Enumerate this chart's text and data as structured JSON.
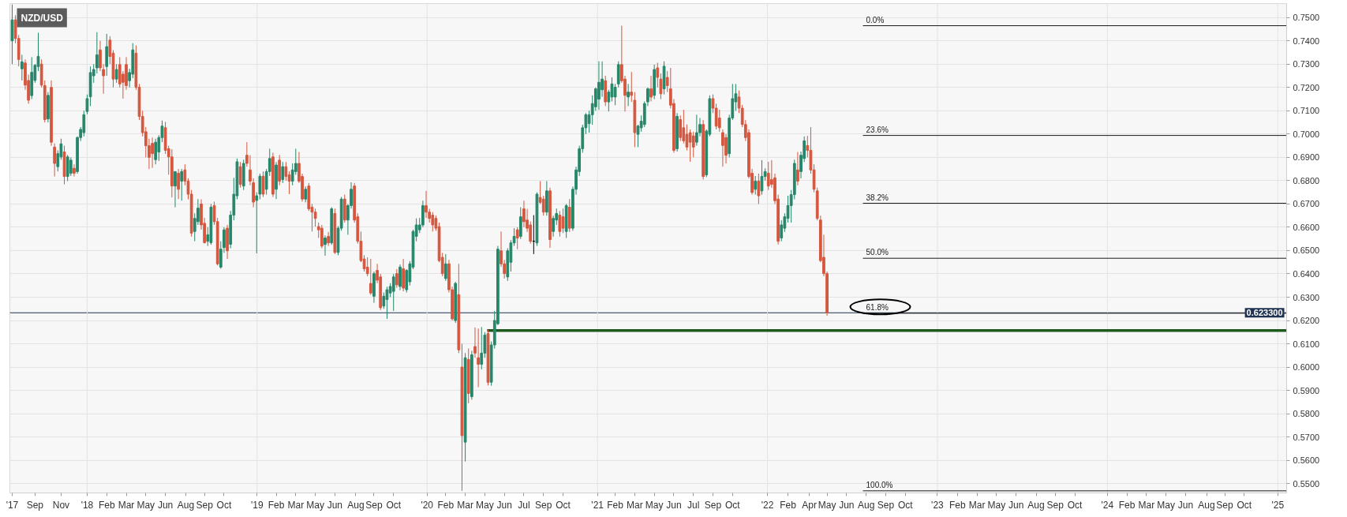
{
  "chart_data": {
    "type": "candlestick",
    "title": "NZD/USD",
    "x": [
      "2017-07-24",
      "2017-07-31",
      "2017-08-07",
      "2017-08-14",
      "2017-08-21",
      "2017-08-28",
      "2017-09-04",
      "2017-09-11",
      "2017-09-18",
      "2017-09-25",
      "2017-10-02",
      "2017-10-09",
      "2017-10-16",
      "2017-10-23",
      "2017-10-30",
      "2017-11-06",
      "2017-11-13",
      "2017-11-20",
      "2017-11-27",
      "2017-12-04",
      "2017-12-11",
      "2017-12-18",
      "2017-12-25",
      "2018-01-01",
      "2018-01-08",
      "2018-01-15",
      "2018-01-22",
      "2018-01-29",
      "2018-02-05",
      "2018-02-12",
      "2018-02-19",
      "2018-02-26",
      "2018-03-05",
      "2018-03-12",
      "2018-03-19",
      "2018-03-26",
      "2018-04-02",
      "2018-04-09",
      "2018-04-16",
      "2018-04-23",
      "2018-04-30",
      "2018-05-07",
      "2018-05-14",
      "2018-05-21",
      "2018-05-28",
      "2018-06-04",
      "2018-06-11",
      "2018-06-18",
      "2018-06-25",
      "2018-07-02",
      "2018-07-09",
      "2018-07-16",
      "2018-07-23",
      "2018-07-30",
      "2018-08-06",
      "2018-08-13",
      "2018-08-20",
      "2018-08-27",
      "2018-09-03",
      "2018-09-10",
      "2018-09-17",
      "2018-09-24",
      "2018-10-01",
      "2018-10-08",
      "2018-10-15",
      "2018-10-22",
      "2018-10-29",
      "2018-11-05",
      "2018-11-12",
      "2018-11-19",
      "2018-11-26",
      "2018-12-03",
      "2018-12-10",
      "2018-12-17",
      "2018-12-24",
      "2018-12-31",
      "2019-01-07",
      "2019-01-14",
      "2019-01-21",
      "2019-01-28",
      "2019-02-04",
      "2019-02-11",
      "2019-02-18",
      "2019-02-25",
      "2019-03-04",
      "2019-03-11",
      "2019-03-18",
      "2019-03-25",
      "2019-04-01",
      "2019-04-08",
      "2019-04-15",
      "2019-04-22",
      "2019-04-29",
      "2019-05-06",
      "2019-05-13",
      "2019-05-20",
      "2019-05-27",
      "2019-06-03",
      "2019-06-10",
      "2019-06-17",
      "2019-06-24",
      "2019-07-01",
      "2019-07-08",
      "2019-07-15",
      "2019-07-22",
      "2019-07-29",
      "2019-08-05",
      "2019-08-12",
      "2019-08-19",
      "2019-08-26",
      "2019-09-02",
      "2019-09-09",
      "2019-09-16",
      "2019-09-23",
      "2019-09-30",
      "2019-10-07",
      "2019-10-14",
      "2019-10-21",
      "2019-10-28",
      "2019-11-04",
      "2019-11-11",
      "2019-11-18",
      "2019-11-25",
      "2019-12-02",
      "2019-12-09",
      "2019-12-16",
      "2019-12-23",
      "2019-12-30",
      "2020-01-06",
      "2020-01-13",
      "2020-01-20",
      "2020-01-27",
      "2020-02-03",
      "2020-02-10",
      "2020-02-17",
      "2020-02-24",
      "2020-03-02",
      "2020-03-09",
      "2020-03-16",
      "2020-03-23",
      "2020-03-30",
      "2020-04-06",
      "2020-04-13",
      "2020-04-20",
      "2020-04-27",
      "2020-05-04",
      "2020-05-11",
      "2020-05-18",
      "2020-05-25",
      "2020-06-01",
      "2020-06-08",
      "2020-06-15",
      "2020-06-22",
      "2020-06-29",
      "2020-07-06",
      "2020-07-13",
      "2020-07-20",
      "2020-07-27",
      "2020-08-03",
      "2020-08-10",
      "2020-08-17",
      "2020-08-24",
      "2020-08-31",
      "2020-09-07",
      "2020-09-14",
      "2020-09-21",
      "2020-09-28",
      "2020-10-05",
      "2020-10-12",
      "2020-10-19",
      "2020-10-26",
      "2020-11-02",
      "2020-11-09",
      "2020-11-16",
      "2020-11-23",
      "2020-11-30",
      "2020-12-07",
      "2020-12-14",
      "2020-12-21",
      "2020-12-28",
      "2021-01-04",
      "2021-01-11",
      "2021-01-18",
      "2021-01-25",
      "2021-02-01",
      "2021-02-08",
      "2021-02-15",
      "2021-02-22",
      "2021-03-01",
      "2021-03-08",
      "2021-03-15",
      "2021-03-22",
      "2021-03-29",
      "2021-04-05",
      "2021-04-12",
      "2021-04-19",
      "2021-04-26",
      "2021-05-03",
      "2021-05-10",
      "2021-05-17",
      "2021-05-24",
      "2021-05-31",
      "2021-06-07",
      "2021-06-14",
      "2021-06-21",
      "2021-06-28",
      "2021-07-05",
      "2021-07-12",
      "2021-07-19",
      "2021-07-26",
      "2021-08-02",
      "2021-08-09",
      "2021-08-16",
      "2021-08-23",
      "2021-08-30",
      "2021-09-06",
      "2021-09-13",
      "2021-09-20",
      "2021-09-27",
      "2021-10-04",
      "2021-10-11",
      "2021-10-18",
      "2021-10-25",
      "2021-11-01",
      "2021-11-08",
      "2021-11-15",
      "2021-11-22",
      "2021-11-29",
      "2021-12-06",
      "2021-12-13",
      "2021-12-20",
      "2021-12-27",
      "2022-01-03",
      "2022-01-10",
      "2022-01-17",
      "2022-01-24",
      "2022-01-31",
      "2022-02-07",
      "2022-02-14",
      "2022-02-21",
      "2022-02-28",
      "2022-03-07",
      "2022-03-14",
      "2022-03-21",
      "2022-03-28",
      "2022-04-04",
      "2022-04-11",
      "2022-04-18",
      "2022-04-25",
      "2022-05-02",
      "2022-05-09"
    ],
    "ohlc": [
      [
        0.74,
        0.7556,
        0.73,
        0.749
      ],
      [
        0.749,
        0.751,
        0.739,
        0.741
      ],
      [
        0.741,
        0.7425,
        0.729,
        0.732
      ],
      [
        0.728,
        0.734,
        0.723,
        0.731
      ],
      [
        0.7305,
        0.732,
        0.719,
        0.721
      ],
      [
        0.723,
        0.7255,
        0.713,
        0.7145
      ],
      [
        0.7165,
        0.733,
        0.715,
        0.7265
      ],
      [
        0.723,
        0.73,
        0.722,
        0.7295
      ],
      [
        0.729,
        0.7435,
        0.727,
        0.7333
      ],
      [
        0.73,
        0.732,
        0.72,
        0.721
      ],
      [
        0.7208,
        0.723,
        0.705,
        0.7062
      ],
      [
        0.7065,
        0.718,
        0.705,
        0.7166
      ],
      [
        0.72,
        0.723,
        0.695,
        0.6965
      ],
      [
        0.6944,
        0.696,
        0.6818,
        0.6874
      ],
      [
        0.686,
        0.693,
        0.684,
        0.6916
      ],
      [
        0.6902,
        0.698,
        0.689,
        0.6958
      ],
      [
        0.6923,
        0.695,
        0.6784,
        0.6818
      ],
      [
        0.6818,
        0.691,
        0.6798,
        0.6902
      ],
      [
        0.6832,
        0.69,
        0.682,
        0.6888
      ],
      [
        0.6853,
        0.687,
        0.6818,
        0.6832
      ],
      [
        0.6839,
        0.699,
        0.683,
        0.6985
      ],
      [
        0.6985,
        0.703,
        0.697,
        0.702
      ],
      [
        0.7006,
        0.71,
        0.699,
        0.7083
      ],
      [
        0.7097,
        0.717,
        0.7085,
        0.7152
      ],
      [
        0.716,
        0.729,
        0.712,
        0.7264
      ],
      [
        0.725,
        0.73,
        0.722,
        0.7277
      ],
      [
        0.7284,
        0.7437,
        0.726,
        0.734
      ],
      [
        0.7361,
        0.74,
        0.727,
        0.7284
      ],
      [
        0.7277,
        0.73,
        0.7173,
        0.725
      ],
      [
        0.729,
        0.743,
        0.725,
        0.7375
      ],
      [
        0.7403,
        0.742,
        0.73,
        0.7333
      ],
      [
        0.7347,
        0.736,
        0.72,
        0.7236
      ],
      [
        0.7236,
        0.73,
        0.722,
        0.7277
      ],
      [
        0.7298,
        0.733,
        0.72,
        0.7215
      ],
      [
        0.7257,
        0.727,
        0.7152,
        0.7222
      ],
      [
        0.7298,
        0.733,
        0.719,
        0.7208
      ],
      [
        0.7229,
        0.728,
        0.72,
        0.7264
      ],
      [
        0.7257,
        0.739,
        0.724,
        0.7361
      ],
      [
        0.7347,
        0.738,
        0.719,
        0.7201
      ],
      [
        0.7201,
        0.7215,
        0.706,
        0.7076
      ],
      [
        0.7076,
        0.71,
        0.699,
        0.7006
      ],
      [
        0.701,
        0.703,
        0.69,
        0.695
      ],
      [
        0.695,
        0.698,
        0.685,
        0.69
      ],
      [
        0.696,
        0.6985,
        0.6855,
        0.6916
      ],
      [
        0.689,
        0.698,
        0.687,
        0.6965
      ],
      [
        0.6923,
        0.6995,
        0.6885,
        0.6985
      ],
      [
        0.6985,
        0.7058,
        0.6965,
        0.7034
      ],
      [
        0.7027,
        0.7052,
        0.6915,
        0.693
      ],
      [
        0.6937,
        0.695,
        0.6826,
        0.6902
      ],
      [
        0.6902,
        0.6935,
        0.6728,
        0.6777
      ],
      [
        0.6777,
        0.684,
        0.6686,
        0.6839
      ],
      [
        0.6832,
        0.685,
        0.6721,
        0.6763
      ],
      [
        0.6798,
        0.685,
        0.6714,
        0.6839
      ],
      [
        0.6846,
        0.687,
        0.678,
        0.6798
      ],
      [
        0.6798,
        0.681,
        0.672,
        0.6742
      ],
      [
        0.6742,
        0.676,
        0.656,
        0.6575
      ],
      [
        0.6582,
        0.666,
        0.654,
        0.6638
      ],
      [
        0.6624,
        0.6721,
        0.661,
        0.6682
      ],
      [
        0.67,
        0.672,
        0.659,
        0.661
      ],
      [
        0.6617,
        0.664,
        0.653,
        0.6534
      ],
      [
        0.654,
        0.66,
        0.652,
        0.6568
      ],
      [
        0.6534,
        0.67,
        0.6525,
        0.6686
      ],
      [
        0.6693,
        0.671,
        0.661,
        0.6624
      ],
      [
        0.6624,
        0.664,
        0.6436,
        0.6443
      ],
      [
        0.6429,
        0.654,
        0.6422,
        0.6506
      ],
      [
        0.6513,
        0.66,
        0.649,
        0.6589
      ],
      [
        0.6596,
        0.661,
        0.6464,
        0.6499
      ],
      [
        0.6527,
        0.667,
        0.651,
        0.6652
      ],
      [
        0.6652,
        0.6812,
        0.663,
        0.6742
      ],
      [
        0.6735,
        0.6895,
        0.672,
        0.6881
      ],
      [
        0.686,
        0.688,
        0.677,
        0.6784
      ],
      [
        0.6777,
        0.689,
        0.676,
        0.6874
      ],
      [
        0.6909,
        0.6965,
        0.686,
        0.6874
      ],
      [
        0.6846,
        0.6909,
        0.678,
        0.6798
      ],
      [
        0.6791,
        0.681,
        0.6686,
        0.6708
      ],
      [
        0.6715,
        0.675,
        0.6488,
        0.6735
      ],
      [
        0.6742,
        0.683,
        0.672,
        0.6819
      ],
      [
        0.6819,
        0.684,
        0.673,
        0.6742
      ],
      [
        0.6763,
        0.685,
        0.674,
        0.6839
      ],
      [
        0.6839,
        0.6937,
        0.682,
        0.6895
      ],
      [
        0.6902,
        0.692,
        0.673,
        0.6742
      ],
      [
        0.6763,
        0.688,
        0.6721,
        0.6867
      ],
      [
        0.6888,
        0.691,
        0.678,
        0.6798
      ],
      [
        0.6805,
        0.688,
        0.679,
        0.686
      ],
      [
        0.686,
        0.688,
        0.68,
        0.6818
      ],
      [
        0.6825,
        0.684,
        0.6742,
        0.6798
      ],
      [
        0.6798,
        0.6874,
        0.678,
        0.6846
      ],
      [
        0.6839,
        0.6937,
        0.6825,
        0.6874
      ],
      [
        0.6874,
        0.6923,
        0.679,
        0.6798
      ],
      [
        0.6818,
        0.683,
        0.671,
        0.6721
      ],
      [
        0.6721,
        0.6775,
        0.6707,
        0.6763
      ],
      [
        0.6777,
        0.679,
        0.667,
        0.6679
      ],
      [
        0.6686,
        0.67,
        0.6582,
        0.6665
      ],
      [
        0.6665,
        0.668,
        0.6603,
        0.6638
      ],
      [
        0.6603,
        0.662,
        0.6554,
        0.6589
      ],
      [
        0.6596,
        0.661,
        0.651,
        0.6519
      ],
      [
        0.6526,
        0.6565,
        0.6478,
        0.6554
      ],
      [
        0.6561,
        0.658,
        0.652,
        0.6533
      ],
      [
        0.6533,
        0.6686,
        0.6525,
        0.6679
      ],
      [
        0.6659,
        0.668,
        0.6485,
        0.6492
      ],
      [
        0.6492,
        0.6605,
        0.648,
        0.6596
      ],
      [
        0.6596,
        0.673,
        0.6585,
        0.6721
      ],
      [
        0.6721,
        0.674,
        0.662,
        0.6631
      ],
      [
        0.6631,
        0.67,
        0.6568,
        0.6693
      ],
      [
        0.6693,
        0.6793,
        0.668,
        0.6763
      ],
      [
        0.6777,
        0.679,
        0.662,
        0.6631
      ],
      [
        0.6645,
        0.666,
        0.653,
        0.654
      ],
      [
        0.654,
        0.6582,
        0.645,
        0.6457
      ],
      [
        0.6464,
        0.648,
        0.641,
        0.6422
      ],
      [
        0.6429,
        0.6471,
        0.639,
        0.6401
      ],
      [
        0.6359,
        0.6464,
        0.631,
        0.6318
      ],
      [
        0.6304,
        0.641,
        0.6276,
        0.6401
      ],
      [
        0.6415,
        0.6443,
        0.636,
        0.6373
      ],
      [
        0.6387,
        0.64,
        0.6245,
        0.6255
      ],
      [
        0.6262,
        0.632,
        0.625,
        0.6304
      ],
      [
        0.629,
        0.6345,
        0.6207,
        0.6332
      ],
      [
        0.6318,
        0.636,
        0.63,
        0.6346
      ],
      [
        0.6325,
        0.64,
        0.6241,
        0.6387
      ],
      [
        0.6401,
        0.642,
        0.634,
        0.6353
      ],
      [
        0.6346,
        0.644,
        0.633,
        0.6429
      ],
      [
        0.6422,
        0.6464,
        0.6325,
        0.6339
      ],
      [
        0.6332,
        0.642,
        0.632,
        0.6415
      ],
      [
        0.6366,
        0.6455,
        0.635,
        0.6443
      ],
      [
        0.6429,
        0.659,
        0.642,
        0.6582
      ],
      [
        0.6561,
        0.6638,
        0.654,
        0.661
      ],
      [
        0.6589,
        0.664,
        0.6575,
        0.661
      ],
      [
        0.661,
        0.6714,
        0.66,
        0.6693
      ],
      [
        0.6693,
        0.6756,
        0.664,
        0.6665
      ],
      [
        0.6665,
        0.6679,
        0.662,
        0.6638
      ],
      [
        0.6652,
        0.6665,
        0.6582,
        0.661
      ],
      [
        0.6638,
        0.665,
        0.6585,
        0.6596
      ],
      [
        0.6603,
        0.662,
        0.645,
        0.6457
      ],
      [
        0.6471,
        0.649,
        0.639,
        0.6401
      ],
      [
        0.638,
        0.6485,
        0.637,
        0.6443
      ],
      [
        0.6443,
        0.646,
        0.632,
        0.6332
      ],
      [
        0.6332,
        0.6345,
        0.62,
        0.6207
      ],
      [
        0.62,
        0.6366,
        0.619,
        0.6359
      ],
      [
        0.6311,
        0.6443,
        0.606,
        0.6074
      ],
      [
        0.6,
        0.61,
        0.5469,
        0.5706
      ],
      [
        0.5678,
        0.606,
        0.5595,
        0.604
      ],
      [
        0.6033,
        0.608,
        0.5845,
        0.5887
      ],
      [
        0.5873,
        0.607,
        0.586,
        0.6053
      ],
      [
        0.6088,
        0.617,
        0.604,
        0.606
      ],
      [
        0.604,
        0.6165,
        0.5914,
        0.6012
      ],
      [
        0.6012,
        0.6172,
        0.599,
        0.606
      ],
      [
        0.606,
        0.615,
        0.604,
        0.6137
      ],
      [
        0.6144,
        0.616,
        0.5921,
        0.5935
      ],
      [
        0.5935,
        0.611,
        0.592,
        0.6095
      ],
      [
        0.6095,
        0.6241,
        0.608,
        0.62
      ],
      [
        0.6186,
        0.652,
        0.618,
        0.6506
      ],
      [
        0.6499,
        0.6582,
        0.643,
        0.6443
      ],
      [
        0.6443,
        0.646,
        0.638,
        0.6401
      ],
      [
        0.6387,
        0.651,
        0.637,
        0.6499
      ],
      [
        0.645,
        0.6545,
        0.641,
        0.6533
      ],
      [
        0.6533,
        0.6596,
        0.652,
        0.6561
      ],
      [
        0.6589,
        0.66,
        0.6506,
        0.6554
      ],
      [
        0.6561,
        0.6686,
        0.655,
        0.6645
      ],
      [
        0.6679,
        0.6714,
        0.66,
        0.6624
      ],
      [
        0.6631,
        0.6679,
        0.658,
        0.6596
      ],
      [
        0.661,
        0.6625,
        0.653,
        0.654
      ],
      [
        0.654,
        0.6652,
        0.6485,
        0.654
      ],
      [
        0.6533,
        0.675,
        0.652,
        0.6742
      ],
      [
        0.6728,
        0.6798,
        0.67,
        0.6707
      ],
      [
        0.6721,
        0.6735,
        0.665,
        0.6665
      ],
      [
        0.6665,
        0.6798,
        0.665,
        0.6756
      ],
      [
        0.6756,
        0.677,
        0.6512,
        0.6547
      ],
      [
        0.6582,
        0.665,
        0.656,
        0.6638
      ],
      [
        0.6631,
        0.668,
        0.661,
        0.6659
      ],
      [
        0.6652,
        0.667,
        0.656,
        0.6582
      ],
      [
        0.6645,
        0.668,
        0.6575,
        0.6596
      ],
      [
        0.6582,
        0.67,
        0.6554,
        0.6693
      ],
      [
        0.6686,
        0.6721,
        0.658,
        0.6596
      ],
      [
        0.6596,
        0.6775,
        0.6585,
        0.6763
      ],
      [
        0.6763,
        0.686,
        0.674,
        0.6846
      ],
      [
        0.6839,
        0.695,
        0.682,
        0.6937
      ],
      [
        0.6937,
        0.704,
        0.692,
        0.7027
      ],
      [
        0.7027,
        0.709,
        0.7,
        0.7083
      ],
      [
        0.7045,
        0.71,
        0.7006,
        0.7083
      ],
      [
        0.7083,
        0.7166,
        0.704,
        0.7131
      ],
      [
        0.7117,
        0.72,
        0.71,
        0.7194
      ],
      [
        0.715,
        0.7312,
        0.7104,
        0.7222
      ],
      [
        0.719,
        0.7312,
        0.716,
        0.7236
      ],
      [
        0.7229,
        0.725,
        0.712,
        0.7138
      ],
      [
        0.7138,
        0.719,
        0.7097,
        0.718
      ],
      [
        0.7159,
        0.7243,
        0.714,
        0.7215
      ],
      [
        0.7159,
        0.7215,
        0.7124,
        0.7201
      ],
      [
        0.7215,
        0.7312,
        0.72,
        0.7298
      ],
      [
        0.7298,
        0.7465,
        0.722,
        0.7229
      ],
      [
        0.7236,
        0.725,
        0.7097,
        0.7166
      ],
      [
        0.7159,
        0.7215,
        0.712,
        0.718
      ],
      [
        0.718,
        0.7266,
        0.7138,
        0.7166
      ],
      [
        0.7145,
        0.718,
        0.6944,
        0.7006
      ],
      [
        0.6999,
        0.704,
        0.6944,
        0.7034
      ],
      [
        0.7027,
        0.708,
        0.701,
        0.7055
      ],
      [
        0.7041,
        0.714,
        0.703,
        0.7131
      ],
      [
        0.7138,
        0.72,
        0.712,
        0.7194
      ],
      [
        0.7194,
        0.725,
        0.714,
        0.7159
      ],
      [
        0.7166,
        0.7298,
        0.715,
        0.7277
      ],
      [
        0.7284,
        0.7306,
        0.72,
        0.7243
      ],
      [
        0.7236,
        0.726,
        0.715,
        0.7173
      ],
      [
        0.7194,
        0.7312,
        0.717,
        0.7291
      ],
      [
        0.7243,
        0.727,
        0.718,
        0.7208
      ],
      [
        0.7194,
        0.7284,
        0.711,
        0.7124
      ],
      [
        0.7131,
        0.715,
        0.692,
        0.693
      ],
      [
        0.6937,
        0.709,
        0.6925,
        0.7076
      ],
      [
        0.7062,
        0.708,
        0.697,
        0.6985
      ],
      [
        0.7027,
        0.7104,
        0.696,
        0.6971
      ],
      [
        0.6999,
        0.7041,
        0.693,
        0.6944
      ],
      [
        0.7006,
        0.702,
        0.6881,
        0.6965
      ],
      [
        0.6992,
        0.701,
        0.69,
        0.6944
      ],
      [
        0.6965,
        0.7083,
        0.695,
        0.7006
      ],
      [
        0.7006,
        0.7069,
        0.699,
        0.7041
      ],
      [
        0.7041,
        0.706,
        0.6805,
        0.6818
      ],
      [
        0.6825,
        0.702,
        0.6815,
        0.7013
      ],
      [
        0.6999,
        0.7166,
        0.699,
        0.7152
      ],
      [
        0.7152,
        0.717,
        0.709,
        0.7111
      ],
      [
        0.7111,
        0.713,
        0.702,
        0.7034
      ],
      [
        0.7069,
        0.7104,
        0.701,
        0.7027
      ],
      [
        0.7006,
        0.702,
        0.686,
        0.6951
      ],
      [
        0.6985,
        0.7,
        0.6874,
        0.6909
      ],
      [
        0.6916,
        0.7083,
        0.69,
        0.7069
      ],
      [
        0.7069,
        0.7215,
        0.706,
        0.7152
      ],
      [
        0.7138,
        0.7215,
        0.71,
        0.7173
      ],
      [
        0.7159,
        0.7187,
        0.709,
        0.7111
      ],
      [
        0.7111,
        0.7125,
        0.703,
        0.7041
      ],
      [
        0.7041,
        0.706,
        0.697,
        0.6985
      ],
      [
        0.7006,
        0.702,
        0.681,
        0.6818
      ],
      [
        0.6832,
        0.685,
        0.674,
        0.6749
      ],
      [
        0.6763,
        0.682,
        0.674,
        0.6798
      ],
      [
        0.6798,
        0.683,
        0.67,
        0.6735
      ],
      [
        0.6756,
        0.6888,
        0.674,
        0.6818
      ],
      [
        0.6818,
        0.6853,
        0.68,
        0.6839
      ],
      [
        0.6832,
        0.6881,
        0.676,
        0.6777
      ],
      [
        0.6805,
        0.6888,
        0.677,
        0.6784
      ],
      [
        0.6812,
        0.683,
        0.67,
        0.6714
      ],
      [
        0.6721,
        0.674,
        0.6526,
        0.654
      ],
      [
        0.6554,
        0.663,
        0.654,
        0.661
      ],
      [
        0.6596,
        0.666,
        0.658,
        0.6645
      ],
      [
        0.6638,
        0.6735,
        0.662,
        0.6693
      ],
      [
        0.6693,
        0.676,
        0.662,
        0.674
      ],
      [
        0.674,
        0.689,
        0.672,
        0.6874
      ],
      [
        0.6846,
        0.6923,
        0.678,
        0.6798
      ],
      [
        0.6839,
        0.6925,
        0.681,
        0.6909
      ],
      [
        0.6895,
        0.699,
        0.688,
        0.6971
      ],
      [
        0.6951,
        0.6992,
        0.69,
        0.693
      ],
      [
        0.693,
        0.703,
        0.683,
        0.6846
      ],
      [
        0.6846,
        0.687,
        0.675,
        0.6763
      ],
      [
        0.6756,
        0.677,
        0.663,
        0.6638
      ],
      [
        0.6631,
        0.665,
        0.645,
        0.6457
      ],
      [
        0.6471,
        0.6568,
        0.639,
        0.6401
      ],
      [
        0.6401,
        0.641,
        0.622,
        0.6233
      ]
    ],
    "colors": [
      "#26866a",
      "#d4573f",
      "#d4573f",
      "#26866a",
      "#d4573f",
      "#d4573f",
      "#26866a",
      "#26866a",
      "#26866a",
      "#d4573f",
      "#d4573f",
      "#26866a",
      "#d4573f",
      "#d4573f",
      "#26866a",
      "#26866a",
      "#d4573f",
      "#26866a",
      "#26866a",
      "#d4573f",
      "#26866a",
      "#26866a",
      "#26866a",
      "#26866a",
      "#26866a",
      "#26866a",
      "#26866a",
      "#d4573f",
      "#d4573f",
      "#26866a",
      "#d4573f",
      "#d4573f",
      "#26866a",
      "#d4573f",
      "#d4573f",
      "#d4573f",
      "#26866a",
      "#26866a",
      "#d4573f",
      "#d4573f",
      "#d4573f",
      "#d4573f",
      "#d4573f",
      "#d4573f",
      "#26866a",
      "#26866a",
      "#26866a",
      "#d4573f",
      "#d4573f",
      "#d4573f",
      "#26866a",
      "#d4573f",
      "#26866a",
      "#d4573f",
      "#d4573f",
      "#d4573f",
      "#26866a",
      "#26866a",
      "#d4573f",
      "#d4573f",
      "#26866a",
      "#26866a",
      "#d4573f",
      "#d4573f",
      "#26866a",
      "#26866a",
      "#d4573f",
      "#26866a",
      "#26866a",
      "#26866a",
      "#d4573f",
      "#26866a",
      "#d4573f",
      "#d4573f",
      "#d4573f",
      "#26866a",
      "#26866a",
      "#d4573f",
      "#26866a",
      "#26866a",
      "#d4573f",
      "#26866a",
      "#d4573f",
      "#26866a",
      "#d4573f",
      "#d4573f",
      "#26866a",
      "#26866a",
      "#d4573f",
      "#d4573f",
      "#26866a",
      "#d4573f",
      "#d4573f",
      "#d4573f",
      "#d4573f",
      "#d4573f",
      "#26866a",
      "#d4573f",
      "#26866a",
      "#d4573f",
      "#26866a",
      "#26866a",
      "#d4573f",
      "#26866a",
      "#26866a",
      "#d4573f",
      "#d4573f",
      "#d4573f",
      "#d4573f",
      "#d4573f",
      "#d4573f",
      "#26866a",
      "#d4573f",
      "#d4573f",
      "#26866a",
      "#26866a",
      "#26866a",
      "#26866a",
      "#d4573f",
      "#26866a",
      "#d4573f",
      "#26866a",
      "#26866a",
      "#26866a",
      "#26866a",
      "#26866a",
      "#26866a",
      "#d4573f",
      "#d4573f",
      "#d4573f",
      "#d4573f",
      "#d4573f",
      "#d4573f",
      "#26866a",
      "#d4573f",
      "#d4573f",
      "#26866a",
      "#d4573f",
      "#d4573f",
      "#26866a",
      "#d4573f",
      "#26866a",
      "#d4573f",
      "#d4573f",
      "#26866a",
      "#26866a",
      "#d4573f",
      "#26866a",
      "#26866a",
      "#26866a",
      "#d4573f",
      "#d4573f",
      "#26866a",
      "#26866a",
      "#26866a",
      "#d4573f",
      "#26866a",
      "#d4573f",
      "#d4573f",
      "#d4573f",
      "#000000",
      "#26866a",
      "#d4573f",
      "#d4573f",
      "#26866a",
      "#d4573f",
      "#26866a",
      "#26866a",
      "#d4573f",
      "#d4573f",
      "#26866a",
      "#d4573f",
      "#26866a",
      "#26866a",
      "#26866a",
      "#26866a",
      "#26866a",
      "#26866a",
      "#26866a",
      "#26866a",
      "#26866a",
      "#26866a",
      "#d4573f",
      "#26866a",
      "#26866a",
      "#26866a",
      "#26866a",
      "#d4573f",
      "#d4573f",
      "#26866a",
      "#d4573f",
      "#d4573f",
      "#26866a",
      "#26866a",
      "#26866a",
      "#26866a",
      "#d4573f",
      "#26866a",
      "#d4573f",
      "#d4573f",
      "#26866a",
      "#d4573f",
      "#d4573f",
      "#d4573f",
      "#26866a",
      "#d4573f",
      "#d4573f",
      "#d4573f",
      "#d4573f",
      "#d4573f",
      "#26866a",
      "#26866a",
      "#d4573f",
      "#26866a",
      "#26866a",
      "#d4573f",
      "#d4573f",
      "#d4573f",
      "#d4573f",
      "#d4573f",
      "#26866a",
      "#26866a",
      "#26866a",
      "#d4573f",
      "#d4573f",
      "#d4573f",
      "#d4573f",
      "#d4573f",
      "#26866a",
      "#d4573f",
      "#26866a",
      "#26866a",
      "#d4573f",
      "#d4573f",
      "#d4573f",
      "#d4573f",
      "#26866a",
      "#26866a",
      "#26866a",
      "#26866a",
      "#26866a",
      "#d4573f",
      "#26866a",
      "#26866a",
      "#d4573f",
      "#d4573f",
      "#d4573f",
      "#d4573f",
      "#d4573f",
      "#d4573f",
      "#d4573f"
    ],
    "series": [
      {
        "type": "line",
        "name": "0.0%",
        "color": "#1a1a1a",
        "x": [
          "2022-07-25",
          "2025-01-20"
        ],
        "values": [
          0.7465,
          0.7465
        ]
      },
      {
        "type": "line",
        "name": "23.6%",
        "color": "#1a1a1a",
        "x": [
          "2022-07-25",
          "2025-01-20"
        ],
        "values": [
          0.6994,
          0.6994
        ]
      },
      {
        "type": "line",
        "name": "38.2%",
        "color": "#1a1a1a",
        "x": [
          "2022-07-25",
          "2025-01-20"
        ],
        "values": [
          0.6703,
          0.6703
        ]
      },
      {
        "type": "line",
        "name": "50.0%",
        "color": "#1a1a1a",
        "x": [
          "2022-07-25",
          "2025-01-20"
        ],
        "values": [
          0.6467,
          0.6467
        ]
      },
      {
        "type": "line",
        "name": "61.8%",
        "color": "#1a1a1a",
        "x": [
          "2022-07-25",
          "2025-01-20"
        ],
        "values": [
          0.6231,
          0.6231
        ]
      },
      {
        "type": "line",
        "name": "100.0%",
        "color": "#1a1a1a",
        "x": [
          "2022-07-25",
          "2025-01-20"
        ],
        "values": [
          0.5469,
          0.5469
        ]
      },
      {
        "type": "line",
        "color": "#1e5a1e",
        "x": [
          "2020-05-09",
          "2025-01-20"
        ],
        "values": [
          0.6157,
          0.6157
        ]
      }
    ],
    "xlim": [
      "2017-07-19",
      "2025-01-20"
    ],
    "ylim": [
      0.546,
      0.756
    ],
    "xticks": [
      {
        "value": "2017-07-24",
        "label": "'17"
      },
      {
        "value": "2017-09-11",
        "label": "Sep"
      },
      {
        "value": "2017-11-06",
        "label": "Nov"
      },
      {
        "value": "2018-01-01",
        "label": "'18"
      },
      {
        "value": "2018-02-12",
        "label": "Feb"
      },
      {
        "value": "2018-03-26",
        "label": "Mar"
      },
      {
        "value": "2018-05-07",
        "label": "May"
      },
      {
        "value": "2018-06-18",
        "label": "Jun"
      },
      {
        "value": "2018-08-01",
        "label": "Aug"
      },
      {
        "value": "2018-09-10",
        "label": "Sep"
      },
      {
        "value": "2018-10-22",
        "label": "Oct"
      },
      {
        "value": "2019-01-01",
        "label": "'19"
      },
      {
        "value": "2019-02-11",
        "label": "Feb"
      },
      {
        "value": "2019-03-25",
        "label": "Mar"
      },
      {
        "value": "2019-05-06",
        "label": "May"
      },
      {
        "value": "2019-06-17",
        "label": "Jun"
      },
      {
        "value": "2019-08-01",
        "label": "Aug"
      },
      {
        "value": "2019-09-09",
        "label": "Sep"
      },
      {
        "value": "2019-10-21",
        "label": "Oct"
      },
      {
        "value": "2020-01-01",
        "label": "'20"
      },
      {
        "value": "2020-02-10",
        "label": "Feb"
      },
      {
        "value": "2020-03-23",
        "label": "Mar"
      },
      {
        "value": "2020-05-04",
        "label": "May"
      },
      {
        "value": "2020-06-15",
        "label": "Jun"
      },
      {
        "value": "2020-07-27",
        "label": "Jul"
      },
      {
        "value": "2020-09-07",
        "label": "Sep"
      },
      {
        "value": "2020-10-19",
        "label": "Oct"
      },
      {
        "value": "2021-01-01",
        "label": "'21"
      },
      {
        "value": "2021-02-08",
        "label": "Feb"
      },
      {
        "value": "2021-03-22",
        "label": "Mar"
      },
      {
        "value": "2021-05-03",
        "label": "May"
      },
      {
        "value": "2021-06-14",
        "label": "Jun"
      },
      {
        "value": "2021-07-26",
        "label": "Jul"
      },
      {
        "value": "2021-09-06",
        "label": "Sep"
      },
      {
        "value": "2021-10-18",
        "label": "Oct"
      },
      {
        "value": "2022-01-01",
        "label": "'22"
      },
      {
        "value": "2022-02-14",
        "label": "Feb"
      },
      {
        "value": "2022-04-01",
        "label": "Apr"
      },
      {
        "value": "2022-05-09",
        "label": "May"
      },
      {
        "value": "2022-06-20",
        "label": "Jun"
      },
      {
        "value": "2022-08-01",
        "label": "Aug"
      },
      {
        "value": "2022-09-12",
        "label": "Sep"
      },
      {
        "value": "2022-10-24",
        "label": "Oct"
      },
      {
        "value": "2023-01-01",
        "label": "'23"
      },
      {
        "value": "2023-02-13",
        "label": "Feb"
      },
      {
        "value": "2023-03-27",
        "label": "Mar"
      },
      {
        "value": "2023-05-08",
        "label": "May"
      },
      {
        "value": "2023-06-19",
        "label": "Jun"
      },
      {
        "value": "2023-08-01",
        "label": "Aug"
      },
      {
        "value": "2023-09-11",
        "label": "Sep"
      },
      {
        "value": "2023-10-23",
        "label": "Oct"
      },
      {
        "value": "2024-01-01",
        "label": "'24"
      },
      {
        "value": "2024-02-12",
        "label": "Feb"
      },
      {
        "value": "2024-03-25",
        "label": "Mar"
      },
      {
        "value": "2024-05-06",
        "label": "May"
      },
      {
        "value": "2024-06-17",
        "label": "Jun"
      },
      {
        "value": "2024-08-01",
        "label": "Aug"
      },
      {
        "value": "2024-09-09",
        "label": "Sep"
      },
      {
        "value": "2024-10-21",
        "label": "Oct"
      },
      {
        "value": "2025-01-01",
        "label": "'25"
      }
    ],
    "yticks": [
      {
        "value": 0.55,
        "label": "0.5500"
      },
      {
        "value": 0.56,
        "label": "0.5600"
      },
      {
        "value": 0.57,
        "label": "0.5700"
      },
      {
        "value": 0.58,
        "label": "0.5800"
      },
      {
        "value": 0.59,
        "label": "0.5900"
      },
      {
        "value": 0.6,
        "label": "0.6000"
      },
      {
        "value": 0.61,
        "label": "0.6100"
      },
      {
        "value": 0.62,
        "label": "0.6200"
      },
      {
        "value": 0.63,
        "label": "0.6300"
      },
      {
        "value": 0.64,
        "label": "0.6400"
      },
      {
        "value": 0.65,
        "label": "0.6500"
      },
      {
        "value": 0.66,
        "label": "0.6600"
      },
      {
        "value": 0.67,
        "label": "0.6700"
      },
      {
        "value": 0.68,
        "label": "0.6800"
      },
      {
        "value": 0.69,
        "label": "0.6900"
      },
      {
        "value": 0.7,
        "label": "0.7000"
      },
      {
        "value": 0.71,
        "label": "0.7100"
      },
      {
        "value": 0.72,
        "label": "0.7200"
      },
      {
        "value": 0.73,
        "label": "0.7300"
      },
      {
        "value": 0.74,
        "label": "0.7400"
      },
      {
        "value": 0.75,
        "label": "0.7500"
      }
    ],
    "grid": "y",
    "ref_lines": [
      {
        "axis": "y",
        "value": 0.6233,
        "label": "0.623300",
        "color": "#1f3350"
      },
      {
        "axis": "x",
        "value": "2018-01-01",
        "color": "#e3e3e3"
      },
      {
        "axis": "x",
        "value": "2019-01-01",
        "color": "#e3e3e3"
      },
      {
        "axis": "x",
        "value": "2020-01-01",
        "color": "#e3e3e3"
      },
      {
        "axis": "x",
        "value": "2021-01-01",
        "color": "#e3e3e3"
      },
      {
        "axis": "x",
        "value": "2022-01-01",
        "color": "#e3e3e3"
      },
      {
        "axis": "x",
        "value": "2023-01-01",
        "color": "#e3e3e3"
      },
      {
        "axis": "x",
        "value": "2024-01-01",
        "color": "#e3e3e3"
      },
      {
        "axis": "x",
        "value": "2025-01-01",
        "color": "#e3e3e3"
      }
    ]
  }
}
